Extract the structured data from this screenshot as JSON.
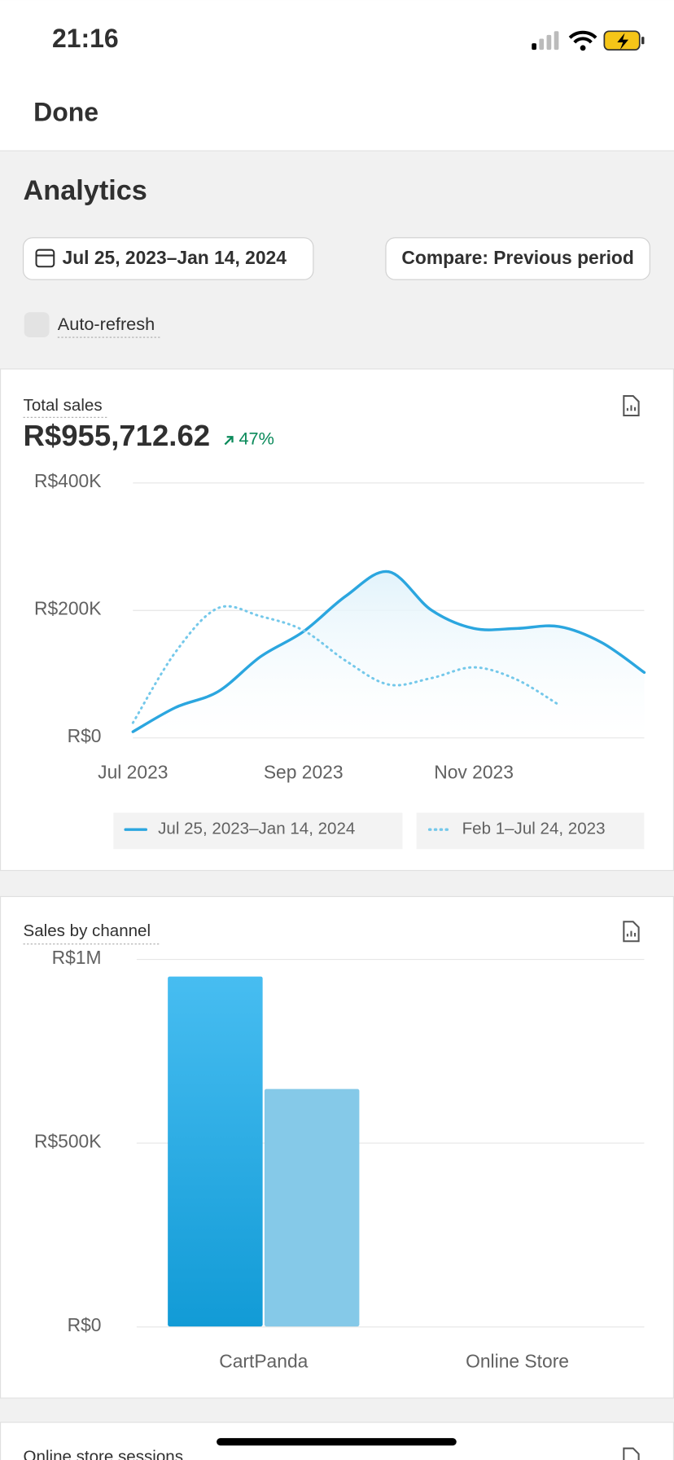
{
  "status": {
    "time": "21:16"
  },
  "header": {
    "done": "Done"
  },
  "analytics": {
    "title": "Analytics",
    "date_range": "Jul 25, 2023–Jan 14, 2024",
    "compare": "Compare: Previous period",
    "auto_refresh": "Auto-refresh"
  },
  "chart_data": [
    {
      "type": "line",
      "title": "Total sales",
      "total": "R$955,712.62",
      "change": "47%",
      "categories": [
        "Jul 2023",
        null,
        null,
        null,
        "Sep 2023",
        null,
        null,
        null,
        "Nov 2023",
        null,
        null,
        null,
        null
      ],
      "series": [
        {
          "name": "Jul 25, 2023–Jan 14, 2024",
          "color": "#2ba6df",
          "values": [
            9000,
            47000,
            72000,
            127000,
            166000,
            222000,
            260000,
            200000,
            171000,
            171000,
            174000,
            149000,
            102000
          ]
        },
        {
          "name": "Feb 1–Jul 24, 2023",
          "color": "#74c8ea",
          "values": [
            23000,
            134000,
            203000,
            190000,
            168000,
            120000,
            83000,
            93000,
            110000,
            91000,
            51000,
            null,
            null
          ]
        }
      ],
      "ylim": [
        0,
        400000
      ],
      "yticks": [
        {
          "value": 0,
          "label": "R$0"
        },
        {
          "value": 200000,
          "label": "R$200K"
        },
        {
          "value": 400000,
          "label": "R$400K"
        }
      ],
      "grid": true
    },
    {
      "type": "bar",
      "title": "Sales by channel",
      "categories": [
        "CartPanda",
        "Online Store"
      ],
      "series": [
        {
          "color": "#1aa2dc",
          "values": [
            952000,
            0
          ]
        },
        {
          "color": "#85c9e8",
          "values": [
            646000,
            0
          ]
        }
      ],
      "ylim": [
        0,
        1000000
      ],
      "yticks": [
        {
          "value": 0,
          "label": "R$0"
        },
        {
          "value": 500000,
          "label": "R$500K"
        },
        {
          "value": 1000000,
          "label": "R$1M"
        }
      ],
      "grid": true
    }
  ],
  "next_section": {
    "title": "Online store sessions"
  }
}
